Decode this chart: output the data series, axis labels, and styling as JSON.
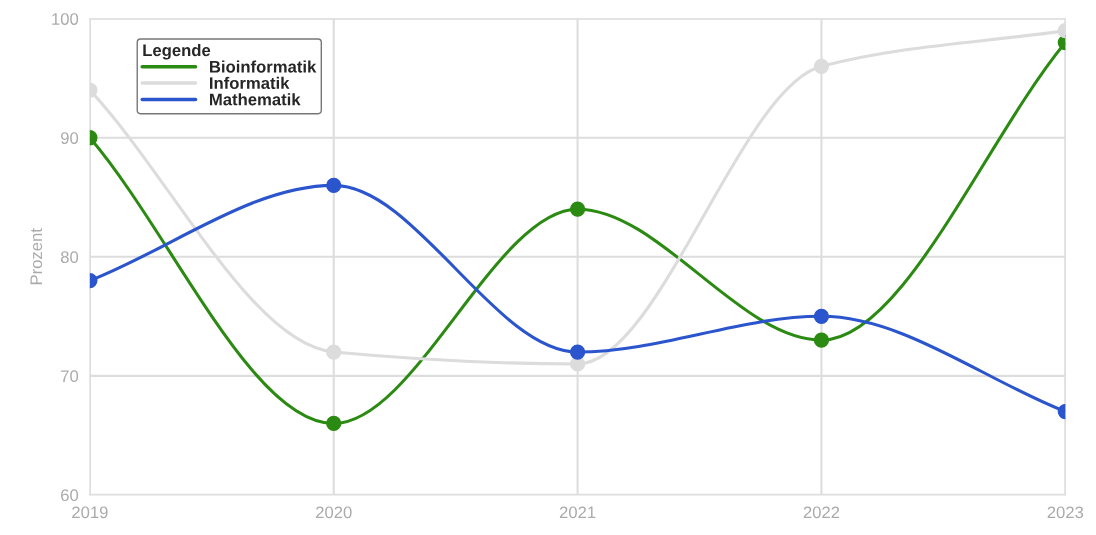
{
  "chart_data": {
    "type": "line",
    "ylabel": "Prozent",
    "legend_title": "Legende",
    "categories": [
      "2019",
      "2020",
      "2021",
      "2022",
      "2023"
    ],
    "series": [
      {
        "name": "Bioinformatik",
        "color": "#2b8a12",
        "values": [
          90,
          66,
          84,
          73,
          98
        ]
      },
      {
        "name": "Informatik",
        "color": "#dcdcdc",
        "values": [
          94,
          72,
          71,
          96,
          99
        ]
      },
      {
        "name": "Mathematik",
        "color": "#2b55cc",
        "values": [
          78,
          86,
          72,
          75,
          67
        ]
      }
    ],
    "ylim": [
      60,
      100
    ],
    "yticks": [
      60,
      70,
      80,
      90,
      100
    ],
    "grid": true,
    "legend": "top left",
    "marker": "circle",
    "line_style": "solid"
  }
}
